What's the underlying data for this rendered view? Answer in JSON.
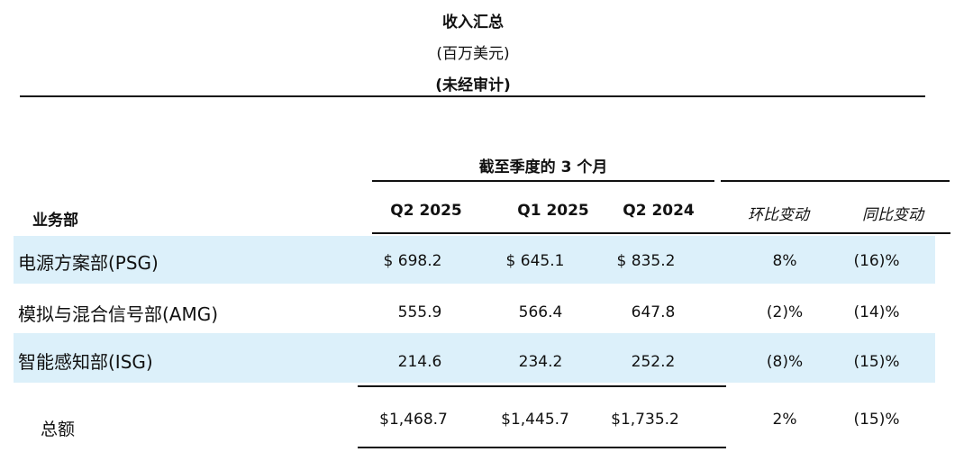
{
  "header": {
    "title": "收入汇总",
    "unit": "(百万美元)",
    "audit": "(未经审计)"
  },
  "table": {
    "period_header": "截至季度的 3 个月",
    "row_header": "业务部",
    "columns": [
      "Q2 2025",
      "Q1 2025",
      "Q2 2024",
      "环比变动",
      "同比变动"
    ],
    "rows": [
      {
        "label": "电源方案部(PSG)",
        "values": [
          "$ 698.2",
          "$ 645.1",
          "$ 835.2",
          "8%",
          "(16)%"
        ],
        "highlight": true
      },
      {
        "label": "模拟与混合信号部(AMG)",
        "values": [
          "555.9",
          "566.4",
          "647.8",
          "(2)%",
          "(14)%"
        ],
        "highlight": false
      },
      {
        "label": "智能感知部(ISG)",
        "values": [
          "214.6",
          "234.2",
          "252.2",
          "(8)%",
          "(15)%"
        ],
        "highlight": true
      }
    ],
    "total": {
      "label": "总额",
      "values": [
        "$1,468.7",
        "$1,445.7",
        "$1,735.2",
        "2%",
        "(15)%"
      ]
    }
  },
  "colors": {
    "highlight_band": "#dcf0fa",
    "rule": "#111111"
  }
}
